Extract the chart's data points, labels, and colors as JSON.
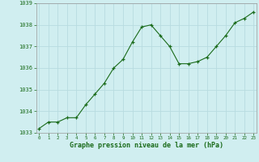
{
  "x": [
    0,
    1,
    2,
    3,
    4,
    5,
    6,
    7,
    8,
    9,
    10,
    11,
    12,
    13,
    14,
    15,
    16,
    17,
    18,
    19,
    20,
    21,
    22,
    23
  ],
  "y": [
    1033.2,
    1033.5,
    1033.5,
    1033.7,
    1033.7,
    1034.3,
    1034.8,
    1035.3,
    1036.0,
    1036.4,
    1037.2,
    1037.9,
    1038.0,
    1037.5,
    1037.0,
    1036.2,
    1036.2,
    1036.3,
    1036.5,
    1037.0,
    1037.5,
    1038.1,
    1038.3,
    1038.6
  ],
  "line_color": "#1a6b1a",
  "marker_color": "#1a6b1a",
  "bg_color": "#d0eef0",
  "grid_color": "#b8dce0",
  "xlabel": "Graphe pression niveau de la mer (hPa)",
  "xlabel_color": "#1a6b1a",
  "tick_color": "#1a6b1a",
  "ylim": [
    1033.0,
    1039.0
  ],
  "yticks": [
    1033,
    1034,
    1035,
    1036,
    1037,
    1038,
    1039
  ],
  "xticks": [
    0,
    1,
    2,
    3,
    4,
    5,
    6,
    7,
    8,
    9,
    10,
    11,
    12,
    13,
    14,
    15,
    16,
    17,
    18,
    19,
    20,
    21,
    22,
    23
  ],
  "figsize": [
    3.2,
    2.0
  ],
  "dpi": 100
}
